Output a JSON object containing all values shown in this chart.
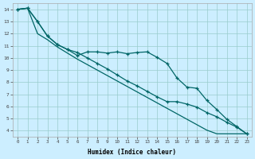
{
  "xlabel": "Humidex (Indice chaleur)",
  "bg_color": "#cceeff",
  "grid_color": "#99cccc",
  "line_color": "#006666",
  "xlim": [
    -0.5,
    23.5
  ],
  "ylim": [
    3.5,
    14.5
  ],
  "yticks": [
    4,
    5,
    6,
    7,
    8,
    9,
    10,
    11,
    12,
    13,
    14
  ],
  "xticks": [
    0,
    1,
    2,
    3,
    4,
    5,
    6,
    7,
    8,
    9,
    10,
    11,
    12,
    13,
    14,
    15,
    16,
    17,
    18,
    19,
    20,
    21,
    22,
    23
  ],
  "line1_x": [
    0,
    1,
    2,
    3,
    4,
    5,
    6,
    7,
    8,
    9,
    10,
    11,
    12,
    13,
    14,
    15,
    16,
    17,
    18,
    19,
    20,
    21,
    22,
    23
  ],
  "line1_y": [
    14.0,
    14.1,
    13.0,
    11.8,
    11.1,
    10.7,
    10.2,
    10.5,
    10.5,
    10.4,
    10.5,
    10.35,
    10.45,
    10.5,
    10.05,
    9.55,
    8.35,
    7.6,
    7.5,
    6.5,
    5.75,
    4.95,
    4.35,
    3.75
  ],
  "line2_x": [
    0,
    1,
    2,
    3,
    4,
    5,
    6,
    7,
    8,
    9,
    10,
    11,
    12,
    13,
    14,
    15,
    16,
    17,
    18,
    19,
    20,
    21,
    22,
    23
  ],
  "line2_y": [
    14.0,
    14.1,
    13.0,
    11.8,
    11.1,
    10.7,
    10.45,
    10.0,
    9.55,
    9.1,
    8.6,
    8.1,
    7.7,
    7.25,
    6.8,
    6.4,
    6.4,
    6.2,
    5.95,
    5.5,
    5.15,
    4.7,
    4.3,
    3.75
  ],
  "line3_x": [
    0,
    1,
    2,
    3,
    4,
    5,
    6,
    7,
    8,
    9,
    10,
    11,
    12,
    13,
    14,
    15,
    16,
    17,
    18,
    19,
    20,
    21,
    22,
    23
  ],
  "line3_y": [
    14.0,
    14.1,
    12.0,
    11.5,
    10.9,
    10.4,
    9.9,
    9.45,
    9.0,
    8.55,
    8.1,
    7.65,
    7.2,
    6.75,
    6.3,
    5.85,
    5.4,
    4.95,
    4.5,
    4.05,
    3.75,
    3.75,
    3.75,
    3.75
  ]
}
